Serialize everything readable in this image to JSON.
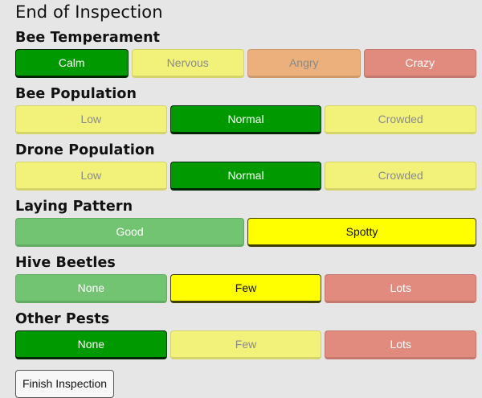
{
  "page": {
    "title": "End of Inspection"
  },
  "colors": {
    "green_selected": "#009900",
    "green_soft": "#72c472",
    "yellow_muted": "#f2f27a",
    "yellow_bright": "#ffff00",
    "orange_muted": "#ebb07c",
    "red_muted": "#e18a7e",
    "text_muted": "#8a8a8a",
    "text_on_dark": "#ffffff",
    "text_dark": "#111111"
  },
  "sections": [
    {
      "title": "Bee Temperament",
      "options": [
        {
          "label": "Calm",
          "selected": true
        },
        {
          "label": "Nervous",
          "selected": false
        },
        {
          "label": "Angry",
          "selected": false
        },
        {
          "label": "Crazy",
          "selected": false
        }
      ]
    },
    {
      "title": "Bee Population",
      "options": [
        {
          "label": "Low",
          "selected": false
        },
        {
          "label": "Normal",
          "selected": true
        },
        {
          "label": "Crowded",
          "selected": false
        }
      ]
    },
    {
      "title": "Drone Population",
      "options": [
        {
          "label": "Low",
          "selected": false
        },
        {
          "label": "Normal",
          "selected": true
        },
        {
          "label": "Crowded",
          "selected": false
        }
      ]
    },
    {
      "title": "Laying Pattern",
      "options": [
        {
          "label": "Good",
          "selected": false
        },
        {
          "label": "Spotty",
          "selected": true
        }
      ]
    },
    {
      "title": "Hive Beetles",
      "options": [
        {
          "label": "None",
          "selected": false
        },
        {
          "label": "Few",
          "selected": true
        },
        {
          "label": "Lots",
          "selected": false
        }
      ]
    },
    {
      "title": "Other Pests",
      "options": [
        {
          "label": "None",
          "selected": true
        },
        {
          "label": "Few",
          "selected": false
        },
        {
          "label": "Lots",
          "selected": false
        }
      ]
    }
  ],
  "finish_button": {
    "label": "Finish Inspection"
  }
}
